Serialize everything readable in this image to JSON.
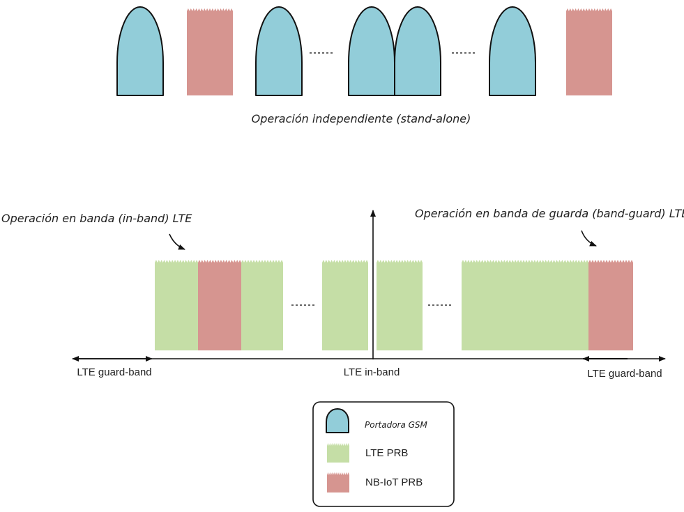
{
  "colors": {
    "gsm": "#92cdd9",
    "lte": "#c5dea6",
    "nbiot": "#d69590",
    "outline": "#111111"
  },
  "standalone": {
    "caption": "Operación independiente (stand-alone)",
    "sequence": [
      "gsm",
      "nbiot",
      "gsm",
      "ellipsis",
      "gsm",
      "gsm",
      "ellipsis",
      "gsm",
      "nbiot"
    ]
  },
  "spectrum": {
    "inband_label": "Operación en banda (in-band) LTE",
    "guardband_label": "Operación en banda de guarda (band-guard) LTE",
    "axis_left_label": "LTE guard-band",
    "axis_center_label": "LTE in-band",
    "axis_right_label": "LTE guard-band"
  },
  "legend": {
    "items": [
      {
        "icon": "gsm",
        "label": "Portadora GSM"
      },
      {
        "icon": "lte",
        "label": "LTE PRB"
      },
      {
        "icon": "nbiot",
        "label": "NB-IoT PRB"
      }
    ]
  }
}
